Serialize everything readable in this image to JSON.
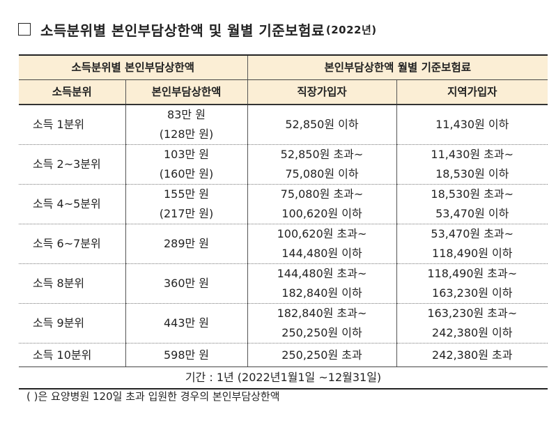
{
  "title": {
    "box_icon": "empty-square-icon",
    "text": "소득분위별 본인부담상한액 및 월별 기준보험료",
    "year": "(2022년)"
  },
  "header": {
    "left_group": "소득분위별 본인부담상한액",
    "right_group": "본인부담상한액 월별 기준보험료",
    "col1": "소득분위",
    "col2": "본인부담상한액",
    "col3": "직장가입자",
    "col4": "지역가입자"
  },
  "rows": [
    {
      "label": "소득 1분위",
      "cap": [
        "83만 원",
        "(128만 원)"
      ],
      "work": [
        "52,850원 이하"
      ],
      "region": [
        "11,430원 이하"
      ]
    },
    {
      "label": "소득 2~3분위",
      "cap": [
        "103만 원",
        "(160만 원)"
      ],
      "work": [
        "52,850원 초과~",
        "75,080원 이하"
      ],
      "region": [
        "11,430원 초과~",
        "18,530원 이하"
      ]
    },
    {
      "label": "소득 4~5분위",
      "cap": [
        "155만 원",
        "(217만 원)"
      ],
      "work": [
        "75,080원 초과~",
        "100,620원 이하"
      ],
      "region": [
        "18,530원 초과~",
        "53,470원 이하"
      ]
    },
    {
      "label": "소득 6~7분위",
      "cap": [
        "289만 원"
      ],
      "work": [
        "100,620원 초과~",
        "144,480원 이하"
      ],
      "region": [
        "53,470원 초과~",
        "118,490원 이하"
      ]
    },
    {
      "label": "소득 8분위",
      "cap": [
        "360만 원"
      ],
      "work": [
        "144,480원 초과~",
        "182,840원 이하"
      ],
      "region": [
        "118,490원 초과~",
        "163,230원 이하"
      ]
    },
    {
      "label": "소득 9분위",
      "cap": [
        "443만 원"
      ],
      "work": [
        "182,840원 초과~",
        "250,250원 이하"
      ],
      "region": [
        "163,230원 초과~",
        "242,380원 이하"
      ]
    },
    {
      "label": "소득 10분위",
      "cap": [
        "598만 원"
      ],
      "work": [
        "250,250원 초과"
      ],
      "region": [
        "242,380원 초과"
      ]
    }
  ],
  "period": "기간 : 1년 (2022년1월1일 ~12월31일)",
  "footnote": "(    )은 요양병원 120일 초과 입원한 경우의 본인부담상한액"
}
